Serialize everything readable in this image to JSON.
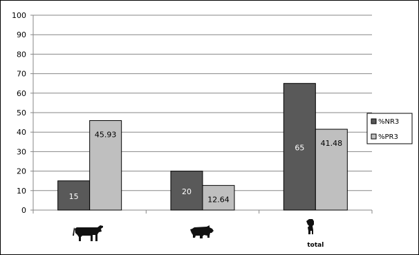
{
  "chart_data": {
    "type": "bar",
    "categories": [
      "",
      "",
      "total"
    ],
    "category_icons": [
      "cow-icon",
      "pig-icon",
      "sheep-icon"
    ],
    "series": [
      {
        "name": "%NR3",
        "values": [
          15,
          20,
          65
        ],
        "value_labels": [
          "15",
          "20",
          "65"
        ],
        "color": "#595959"
      },
      {
        "name": "%PR3",
        "values": [
          45.93,
          12.64,
          41.48
        ],
        "value_labels": [
          "45.93",
          "12.64",
          "41.48"
        ],
        "color": "#bfbfbf"
      }
    ],
    "ylim": [
      0,
      100
    ],
    "yticks": [
      "0",
      "10",
      "20",
      "30",
      "40",
      "50",
      "60",
      "70",
      "80",
      "90",
      "100"
    ],
    "grid": true,
    "legend": "right",
    "title": "",
    "xlabel": "",
    "ylabel": ""
  }
}
